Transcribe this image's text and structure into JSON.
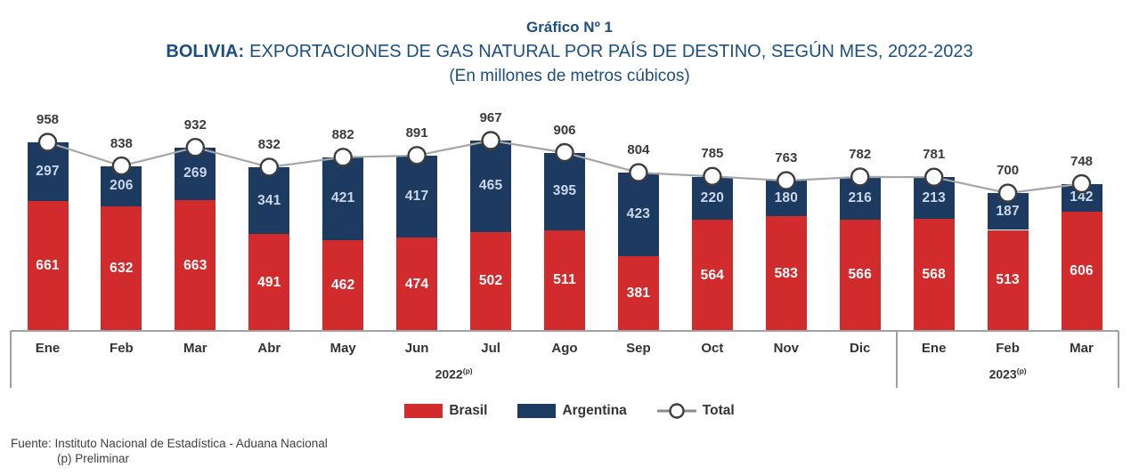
{
  "header": {
    "title": "Gráfico Nº 1",
    "subtitle_prefix": "BOLIVIA:",
    "subtitle": "EXPORTACIONES DE GAS NATURAL POR PAÍS DE DESTINO, SEGÚN MES, 2022-2023",
    "unit_line": "(En millones de metros cúbicos)"
  },
  "chart_data": {
    "type": "bar",
    "stacked": true,
    "title": "BOLIVIA: EXPORTACIONES DE GAS NATURAL POR PAÍS DE DESTINO, SEGÚN MES, 2022-2023",
    "unit": "En millones de metros cúbicos",
    "categories": [
      "Ene",
      "Feb",
      "Mar",
      "Abr",
      "May",
      "Jun",
      "Jul",
      "Ago",
      "Sep",
      "Oct",
      "Nov",
      "Dic",
      "Ene",
      "Feb",
      "Mar"
    ],
    "year_groups": [
      {
        "label": "2022",
        "note": "(p)",
        "months": 12
      },
      {
        "label": "2023",
        "note": "(p)",
        "months": 3
      }
    ],
    "series": [
      {
        "name": "Brasil",
        "type": "bar",
        "color": "#d22b2e",
        "values": [
          661,
          632,
          663,
          491,
          462,
          474,
          502,
          511,
          381,
          564,
          583,
          566,
          568,
          513,
          606
        ]
      },
      {
        "name": "Argentina",
        "type": "bar",
        "color": "#1d3a61",
        "values": [
          297,
          206,
          269,
          341,
          421,
          417,
          465,
          395,
          423,
          220,
          180,
          216,
          213,
          187,
          142
        ]
      },
      {
        "name": "Total",
        "type": "line",
        "color": "#a6a6a6",
        "marker": "white-circle",
        "values": [
          958,
          838,
          932,
          832,
          882,
          891,
          967,
          906,
          804,
          785,
          763,
          782,
          781,
          700,
          748
        ]
      }
    ],
    "ylim": [
      0,
      1000
    ],
    "grid": false,
    "legend_position": "bottom"
  },
  "legend": {
    "items": [
      {
        "label": "Brasil",
        "swatch": "bar",
        "color": "#d22b2e"
      },
      {
        "label": "Argentina",
        "swatch": "bar",
        "color": "#1d3a61"
      },
      {
        "label": "Total",
        "swatch": "line-marker",
        "color": "#a6a6a6"
      }
    ]
  },
  "footer": {
    "source": "Fuente: Instituto Nacional de Estadística - Aduana Nacional",
    "note": "(p) Preliminar"
  },
  "colors": {
    "title_text": "#1c4e80",
    "brasil_bar": "#d22b2e",
    "argentina_bar": "#1d3a61",
    "total_line": "#a6a6a6",
    "marker_stroke": "#3d3d3d",
    "axis": "#a0a0a0"
  }
}
